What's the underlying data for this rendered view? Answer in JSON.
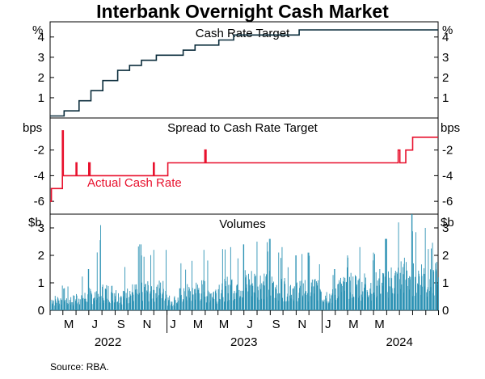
{
  "title": "Interbank Overnight Cash Market",
  "source": "Source:   RBA.",
  "colors": {
    "cash_rate": "#0b2d3c",
    "spread": "#e8112d",
    "volume": "#2f93b5",
    "axis": "#000000"
  },
  "chart_data": [
    {
      "type": "line",
      "title": "Cash Rate Target",
      "unit": "%",
      "ylim": [
        0,
        4.75
      ],
      "yticks": [
        1,
        2,
        3,
        4
      ],
      "x_range": [
        "2022-04-01",
        "2024-09-30"
      ],
      "series": [
        {
          "step": true,
          "points": [
            [
              "2022-04-01",
              0.1
            ],
            [
              "2022-05-04",
              0.35
            ],
            [
              "2022-06-08",
              0.85
            ],
            [
              "2022-07-06",
              1.35
            ],
            [
              "2022-08-03",
              1.85
            ],
            [
              "2022-09-07",
              2.35
            ],
            [
              "2022-10-05",
              2.6
            ],
            [
              "2022-11-02",
              2.85
            ],
            [
              "2022-12-07",
              3.1
            ],
            [
              "2023-02-08",
              3.35
            ],
            [
              "2023-03-08",
              3.6
            ],
            [
              "2023-05-03",
              3.85
            ],
            [
              "2023-06-07",
              4.1
            ],
            [
              "2023-11-08",
              4.35
            ],
            [
              "2024-09-30",
              4.35
            ]
          ]
        }
      ]
    },
    {
      "type": "line",
      "title": "Spread to Cash Rate Target",
      "unit": "bps",
      "ylim": [
        -7,
        0.5
      ],
      "yticks": [
        -6,
        -4,
        -2
      ],
      "annotation": "Actual Cash Rate",
      "series": [
        {
          "step": true,
          "points": [
            [
              "2022-04-01",
              -6
            ],
            [
              "2022-04-04",
              -5
            ],
            [
              "2022-04-29",
              -5
            ],
            [
              "2022-04-30",
              -0.5
            ],
            [
              "2022-05-02",
              -4
            ],
            [
              "2022-05-31",
              -4
            ],
            [
              "2022-06-01",
              -3
            ],
            [
              "2022-06-03",
              -4
            ],
            [
              "2022-06-30",
              -4
            ],
            [
              "2022-07-01",
              -3
            ],
            [
              "2022-07-04",
              -4
            ],
            [
              "2022-11-29",
              -4
            ],
            [
              "2022-11-30",
              -3
            ],
            [
              "2022-12-02",
              -4
            ],
            [
              "2022-12-30",
              -4
            ],
            [
              "2023-01-03",
              -3
            ],
            [
              "2023-03-30",
              -3
            ],
            [
              "2023-03-31",
              -2
            ],
            [
              "2023-04-03",
              -3
            ],
            [
              "2024-06-27",
              -3
            ],
            [
              "2024-06-28",
              -2
            ],
            [
              "2024-07-02",
              -3
            ],
            [
              "2024-07-15",
              -3
            ],
            [
              "2024-07-16",
              -2
            ],
            [
              "2024-08-01",
              -1
            ],
            [
              "2024-09-30",
              -1
            ]
          ]
        }
      ]
    },
    {
      "type": "bar",
      "title": "Volumes",
      "unit": "$b",
      "ylim": [
        0,
        3.5
      ],
      "yticks": [
        0,
        1,
        2,
        3
      ],
      "monthly": {
        "months": [
          "2022-04",
          "2022-05",
          "2022-06",
          "2022-07",
          "2022-08",
          "2022-09",
          "2022-10",
          "2022-11",
          "2022-12",
          "2023-01",
          "2023-02",
          "2023-03",
          "2023-04",
          "2023-05",
          "2023-06",
          "2023-07",
          "2023-08",
          "2023-09",
          "2023-10",
          "2023-11",
          "2023-12",
          "2024-01",
          "2024-02",
          "2024-03",
          "2024-04",
          "2024-05",
          "2024-06",
          "2024-07",
          "2024-08",
          "2024-09"
        ],
        "typical": [
          0.4,
          0.4,
          0.5,
          0.6,
          0.7,
          0.6,
          0.7,
          0.8,
          0.8,
          0.4,
          0.7,
          0.8,
          0.7,
          0.9,
          1.0,
          1.1,
          1.1,
          1.0,
          0.9,
          0.9,
          0.9,
          0.6,
          0.9,
          1.0,
          1.0,
          1.1,
          1.2,
          1.4,
          1.4,
          1.3
        ],
        "peak": [
          0.9,
          1.0,
          1.5,
          3.1,
          1.5,
          1.7,
          2.4,
          2.2,
          2.2,
          0.8,
          1.8,
          2.2,
          1.9,
          2.3,
          2.4,
          2.5,
          2.6,
          2.3,
          2.0,
          2.1,
          2.1,
          1.5,
          2.0,
          2.3,
          2.1,
          2.6,
          3.2,
          3.6,
          3.0,
          2.5
        ]
      }
    }
  ],
  "x_axis": {
    "month_labels": [
      {
        "date": "2022-05-15",
        "label": "M"
      },
      {
        "date": "2022-07-15",
        "label": "J"
      },
      {
        "date": "2022-09-15",
        "label": "S"
      },
      {
        "date": "2022-11-15",
        "label": "N"
      },
      {
        "date": "2023-01-15",
        "label": "J"
      },
      {
        "date": "2023-03-15",
        "label": "M"
      }
    ],
    "year_labels": [
      {
        "date": "2022-08-15",
        "label": "2022"
      },
      {
        "date": "2023-07-01",
        "label": "2023"
      },
      {
        "date": "2024-07-01",
        "label": "2024"
      }
    ]
  }
}
